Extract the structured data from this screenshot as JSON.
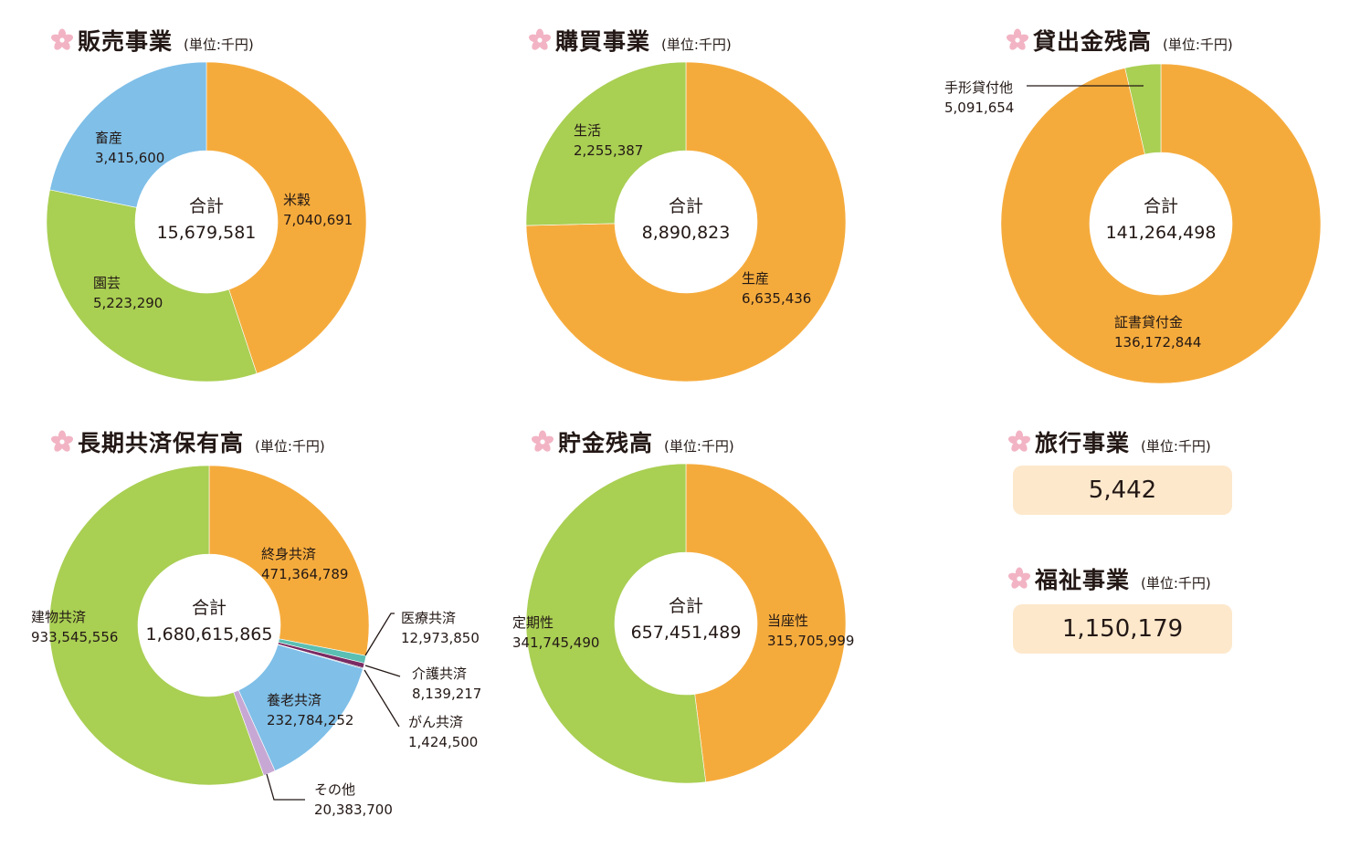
{
  "unit": "(単位:千円)",
  "charts": [
    {
      "id": "sales",
      "title": "販売事業",
      "type": "donut",
      "center_label": "合計",
      "total": "15,679,581",
      "slices": [
        {
          "name": "米穀",
          "value": 7040691,
          "value_text": "7,040,691",
          "color": "#f5ab3c"
        },
        {
          "name": "園芸",
          "value": 5223290,
          "value_text": "5,223,290",
          "color": "#a9cf53"
        },
        {
          "name": "畜産",
          "value": 3415600,
          "value_text": "3,415,600",
          "color": "#7fbfe8"
        }
      ]
    },
    {
      "id": "purchase",
      "title": "購買事業",
      "type": "donut",
      "center_label": "合計",
      "total": "8,890,823",
      "slices": [
        {
          "name": "生産",
          "value": 6635436,
          "value_text": "6,635,436",
          "color": "#f5ab3c"
        },
        {
          "name": "生活",
          "value": 2255387,
          "value_text": "2,255,387",
          "color": "#a9cf53"
        }
      ]
    },
    {
      "id": "loans",
      "title": "貸出金残高",
      "type": "donut",
      "center_label": "合計",
      "total": "141,264,498",
      "slices": [
        {
          "name": "証書貸付金",
          "value": 136172844,
          "value_text": "136,172,844",
          "color": "#f5ab3c"
        },
        {
          "name": "手形貸付他",
          "value": 5091654,
          "value_text": "5,091,654",
          "color": "#a9cf53"
        }
      ]
    },
    {
      "id": "insurance",
      "title": "長期共済保有高",
      "type": "donut",
      "center_label": "合計",
      "total": "1,680,615,865",
      "slices": [
        {
          "name": "終身共済",
          "value": 471364789,
          "value_text": "471,364,789",
          "color": "#f5ab3c"
        },
        {
          "name": "医療共済",
          "value": 12973850,
          "value_text": "12,973,850",
          "color": "#5bbfb3"
        },
        {
          "name": "介護共済",
          "value": 8139217,
          "value_text": "8,139,217",
          "color": "#7a2b63"
        },
        {
          "name": "がん共済",
          "value": 1424500,
          "value_text": "1,424,500",
          "color": "#1a2b55"
        },
        {
          "name": "養老共済",
          "value": 232784252,
          "value_text": "232,784,252",
          "color": "#7fbfe8"
        },
        {
          "name": "その他",
          "value": 20383700,
          "value_text": "20,383,700",
          "color": "#c7a8d4"
        },
        {
          "name": "建物共済",
          "value": 933545556,
          "value_text": "933,545,556",
          "color": "#a9cf53"
        }
      ]
    },
    {
      "id": "savings",
      "title": "貯金残高",
      "type": "donut",
      "center_label": "合計",
      "total": "657,451,489",
      "slices": [
        {
          "name": "当座性",
          "value": 315705999,
          "value_text": "315,705,999",
          "color": "#f5ab3c"
        },
        {
          "name": "定期性",
          "value": 341745490,
          "value_text": "341,745,490",
          "color": "#a9cf53"
        }
      ]
    }
  ],
  "travel": {
    "title": "旅行事業",
    "value": "5,442"
  },
  "welfare": {
    "title": "福祉事業",
    "value": "1,150,179"
  },
  "colors": {
    "box_bg": "#fde8cc",
    "flower": "#f2b4c4",
    "leader_line": "#231815"
  }
}
